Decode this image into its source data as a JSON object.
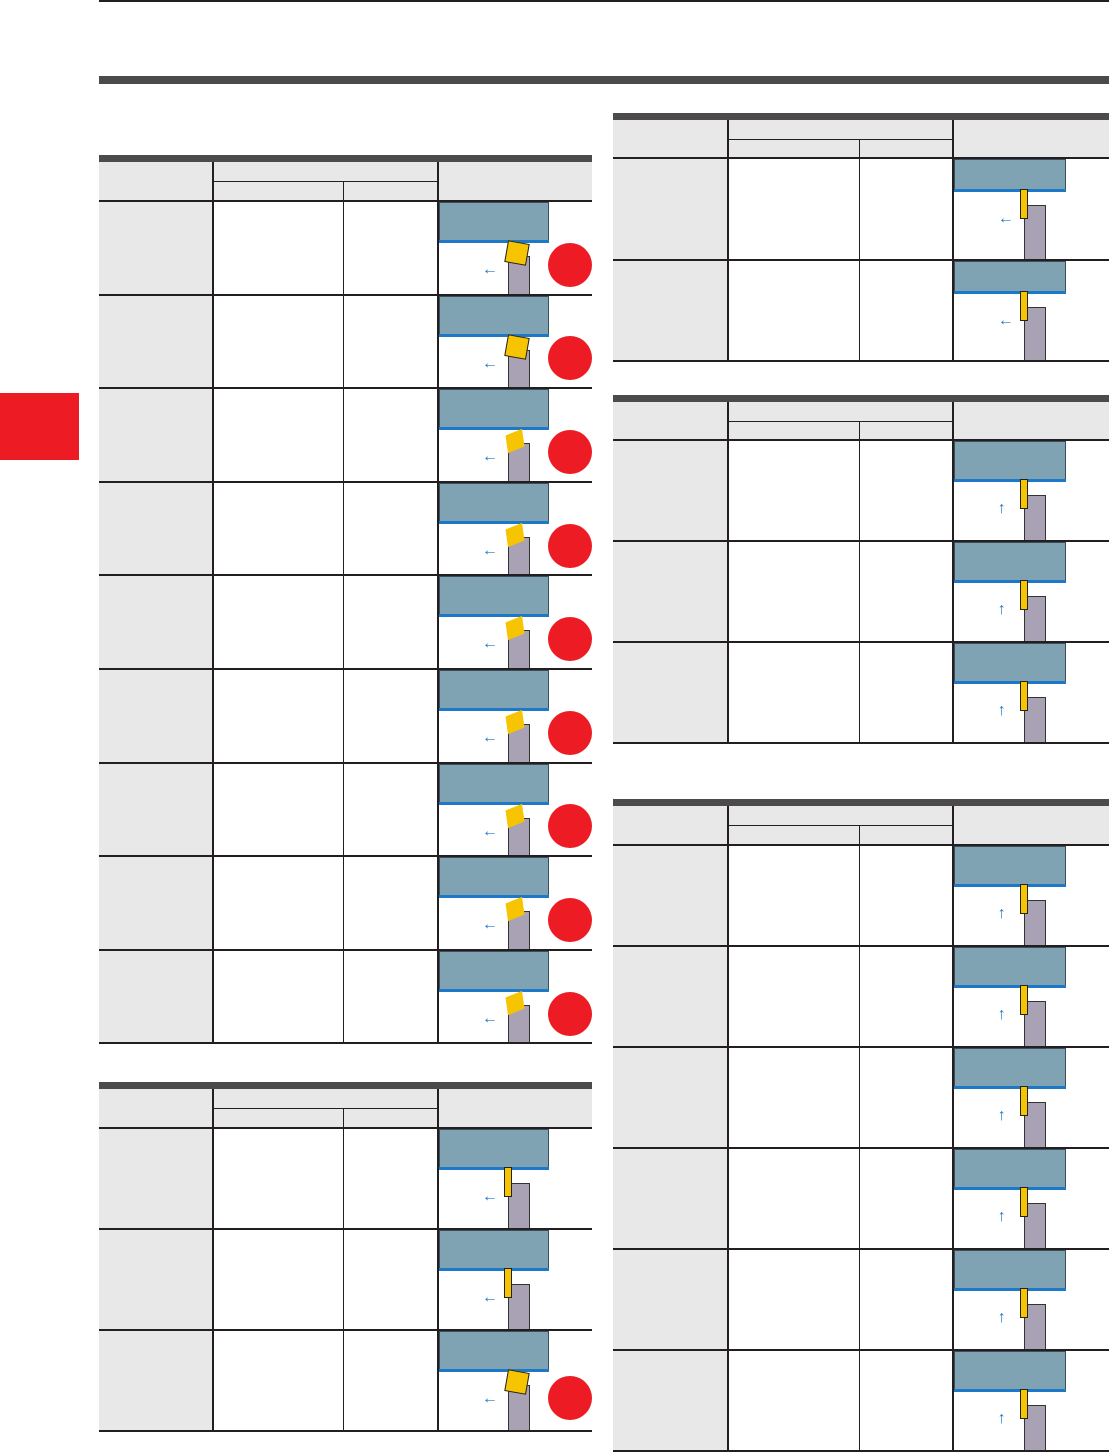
{
  "colors": {
    "accent": "#ed1c24",
    "workpiece": "#7fa3b3",
    "cutting_edge": "#1e78c8",
    "insert": "#f6c400",
    "holder": "#a9a2b4",
    "header_bar": "#4d4a4b",
    "header_bg": "#e8e8e8"
  },
  "side_tab": {
    "color": "#ed1c24"
  },
  "tables": [
    {
      "id": "left-1",
      "rows": [
        {
          "marker": true,
          "icon": "turning-insert-square"
        },
        {
          "marker": true,
          "icon": "turning-insert-square-double"
        },
        {
          "marker": true,
          "icon": "profiling-insert"
        },
        {
          "marker": true,
          "icon": "profiling-insert-diamond"
        },
        {
          "marker": true,
          "icon": "profiling-insert"
        },
        {
          "marker": true,
          "icon": "profiling-insert"
        },
        {
          "marker": true,
          "icon": "profiling-insert"
        },
        {
          "marker": true,
          "icon": "profiling-insert"
        },
        {
          "marker": true,
          "icon": "profiling-insert-diamond"
        }
      ]
    },
    {
      "id": "left-2",
      "rows": [
        {
          "marker": false,
          "icon": "grooving-insert"
        },
        {
          "marker": false,
          "icon": "grooving-insert"
        },
        {
          "marker": true,
          "icon": "turning-insert-square"
        }
      ]
    },
    {
      "id": "right-1",
      "rows": [
        {
          "marker": false,
          "icon": "threading-insert"
        },
        {
          "marker": false,
          "icon": "threading-insert-round"
        }
      ]
    },
    {
      "id": "right-2",
      "rows": [
        {
          "marker": false,
          "icon": "parting-insert-pair"
        },
        {
          "marker": false,
          "icon": "parting-insert-pair"
        },
        {
          "marker": false,
          "icon": "parting-insert-pair"
        }
      ]
    },
    {
      "id": "right-3",
      "rows": [
        {
          "marker": false,
          "icon": "cutoff-insert"
        },
        {
          "marker": false,
          "icon": "cutoff-insert"
        },
        {
          "marker": false,
          "icon": "cutoff-insert"
        },
        {
          "marker": false,
          "icon": "cutoff-insert-block"
        },
        {
          "marker": false,
          "icon": "cutoff-insert-block"
        },
        {
          "marker": false,
          "icon": "cutoff-insert-block"
        }
      ]
    }
  ]
}
